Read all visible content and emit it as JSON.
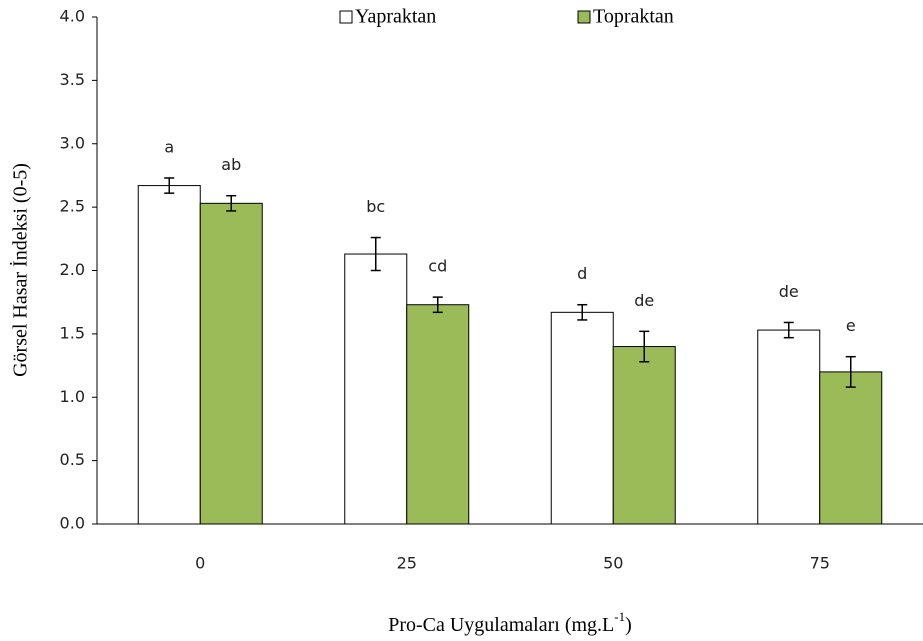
{
  "chart_data": {
    "type": "bar",
    "ylabel": "Görsel Hasar İndeksi (0-5)",
    "xlabel": [
      "Pro-Ca Uygulamaları (mg.L",
      "-1",
      ")"
    ],
    "categories": [
      "0",
      "25",
      "50",
      "75"
    ],
    "series": [
      {
        "name": "Yapraktan",
        "color": "#ffffff",
        "values": [
          2.67,
          2.13,
          1.67,
          1.53
        ],
        "errors": [
          0.06,
          0.13,
          0.06,
          0.06
        ],
        "letters": [
          "a",
          "bc",
          "d",
          "de"
        ]
      },
      {
        "name": "Topraktan",
        "color": "#9bbb59",
        "values": [
          2.53,
          1.73,
          1.4,
          1.2
        ],
        "errors": [
          0.06,
          0.06,
          0.12,
          0.12
        ],
        "letters": [
          "ab",
          "cd",
          "de",
          "e"
        ]
      }
    ],
    "ylim": [
      0,
      4
    ],
    "yticks": [
      {
        "value": 0,
        "label": "0.0"
      },
      0.5,
      {
        "value": 1,
        "label": "1.0"
      },
      1.5,
      {
        "value": 2,
        "label": "2.0"
      },
      2.5,
      {
        "value": 3,
        "label": "3.0"
      },
      3.5,
      {
        "value": 4,
        "label": "4.0"
      }
    ],
    "legend": "top"
  }
}
